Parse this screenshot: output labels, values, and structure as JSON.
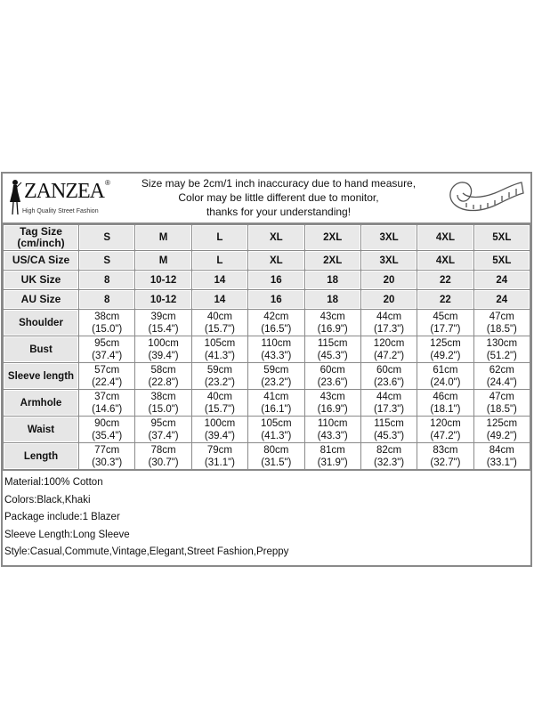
{
  "header": {
    "brand": "ZANZEA",
    "registered_mark": "®",
    "tagline": "High Quality Street Fashion",
    "notice_lines": [
      "Size may be 2cm/1 inch inaccuracy due to hand measure,",
      "Color may be little different due to monitor,",
      "thanks for your understanding!"
    ],
    "icon": "measuring-tape-icon"
  },
  "size_rows": [
    {
      "label_lines": [
        "Tag Size",
        "(cm/inch)"
      ],
      "values": [
        "S",
        "M",
        "L",
        "XL",
        "2XL",
        "3XL",
        "4XL",
        "5XL"
      ]
    },
    {
      "label_lines": [
        "US/CA Size"
      ],
      "values": [
        "S",
        "M",
        "L",
        "XL",
        "2XL",
        "3XL",
        "4XL",
        "5XL"
      ]
    },
    {
      "label_lines": [
        "UK Size"
      ],
      "values": [
        "8",
        "10-12",
        "14",
        "16",
        "18",
        "20",
        "22",
        "24"
      ]
    },
    {
      "label_lines": [
        "AU Size"
      ],
      "values": [
        "8",
        "10-12",
        "14",
        "16",
        "18",
        "20",
        "22",
        "24"
      ]
    }
  ],
  "measure_rows": [
    {
      "label": "Shoulder",
      "cm": [
        "38cm",
        "39cm",
        "40cm",
        "42cm",
        "43cm",
        "44cm",
        "45cm",
        "47cm"
      ],
      "inch": [
        "(15.0\")",
        "(15.4\")",
        "(15.7\")",
        "(16.5\")",
        "(16.9\")",
        "(17.3\")",
        "(17.7\")",
        "(18.5\")"
      ]
    },
    {
      "label": "Bust",
      "cm": [
        "95cm",
        "100cm",
        "105cm",
        "110cm",
        "115cm",
        "120cm",
        "125cm",
        "130cm"
      ],
      "inch": [
        "(37.4\")",
        "(39.4\")",
        "(41.3\")",
        "(43.3\")",
        "(45.3\")",
        "(47.2\")",
        "(49.2\")",
        "(51.2\")"
      ]
    },
    {
      "label": "Sleeve length",
      "cm": [
        "57cm",
        "58cm",
        "59cm",
        "59cm",
        "60cm",
        "60cm",
        "61cm",
        "62cm"
      ],
      "inch": [
        "(22.4\")",
        "(22.8\")",
        "(23.2\")",
        "(23.2\")",
        "(23.6\")",
        "(23.6\")",
        "(24.0\")",
        "(24.4\")"
      ]
    },
    {
      "label": "Armhole",
      "cm": [
        "37cm",
        "38cm",
        "40cm",
        "41cm",
        "43cm",
        "44cm",
        "46cm",
        "47cm"
      ],
      "inch": [
        "(14.6\")",
        "(15.0\")",
        "(15.7\")",
        "(16.1\")",
        "(16.9\")",
        "(17.3\")",
        "(18.1\")",
        "(18.5\")"
      ]
    },
    {
      "label": "Waist",
      "cm": [
        "90cm",
        "95cm",
        "100cm",
        "105cm",
        "110cm",
        "115cm",
        "120cm",
        "125cm"
      ],
      "inch": [
        "(35.4\")",
        "(37.4\")",
        "(39.4\")",
        "(41.3\")",
        "(43.3\")",
        "(45.3\")",
        "(47.2\")",
        "(49.2\")"
      ]
    },
    {
      "label": "Length",
      "cm": [
        "77cm",
        "78cm",
        "79cm",
        "80cm",
        "81cm",
        "82cm",
        "83cm",
        "84cm"
      ],
      "inch": [
        "(30.3\")",
        "(30.7\")",
        "(31.1\")",
        "(31.5\")",
        "(31.9\")",
        "(32.3\")",
        "(32.7\")",
        "(33.1\")"
      ]
    }
  ],
  "details": [
    "Material:100% Cotton",
    "Colors:Black,Khaki",
    "Package include:1 Blazer",
    "Sleeve Length:Long Sleeve",
    "Style:Casual,Commute,Vintage,Elegant,Street Fashion,Preppy"
  ]
}
